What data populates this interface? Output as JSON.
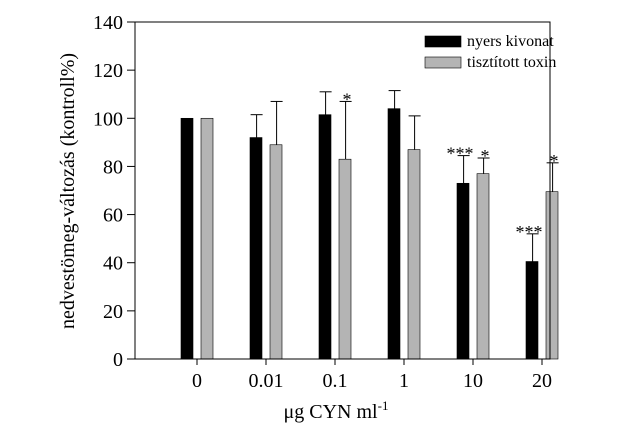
{
  "chart_data": {
    "type": "bar",
    "title": "",
    "xlabel": "μg CYN ml",
    "xlabel_superscript": "-1",
    "ylabel": "nedvestömeg-változás (kontroll%)",
    "ylim": [
      0,
      140
    ],
    "yticks": [
      0,
      20,
      40,
      60,
      80,
      100,
      120,
      140
    ],
    "categories": [
      "0",
      "0.01",
      "0.1",
      "1",
      "10",
      "20"
    ],
    "legend_position": "top-right",
    "grid": false,
    "series": [
      {
        "name": "nyers kivonat",
        "color": "#000000",
        "values": [
          100,
          92,
          101.5,
          104,
          73,
          40.5
        ],
        "error": [
          0,
          9.5,
          9.5,
          7.5,
          11.5,
          11.5
        ],
        "significance": [
          "",
          "",
          "",
          "",
          "***",
          "***"
        ]
      },
      {
        "name": "tisztított toxin",
        "color": "#b4b4b4",
        "values": [
          100,
          89,
          83,
          87,
          77,
          69.5
        ],
        "error": [
          0,
          18,
          24,
          14,
          6.5,
          12
        ],
        "significance": [
          "",
          "",
          "*",
          "",
          "*",
          "*"
        ]
      }
    ]
  }
}
